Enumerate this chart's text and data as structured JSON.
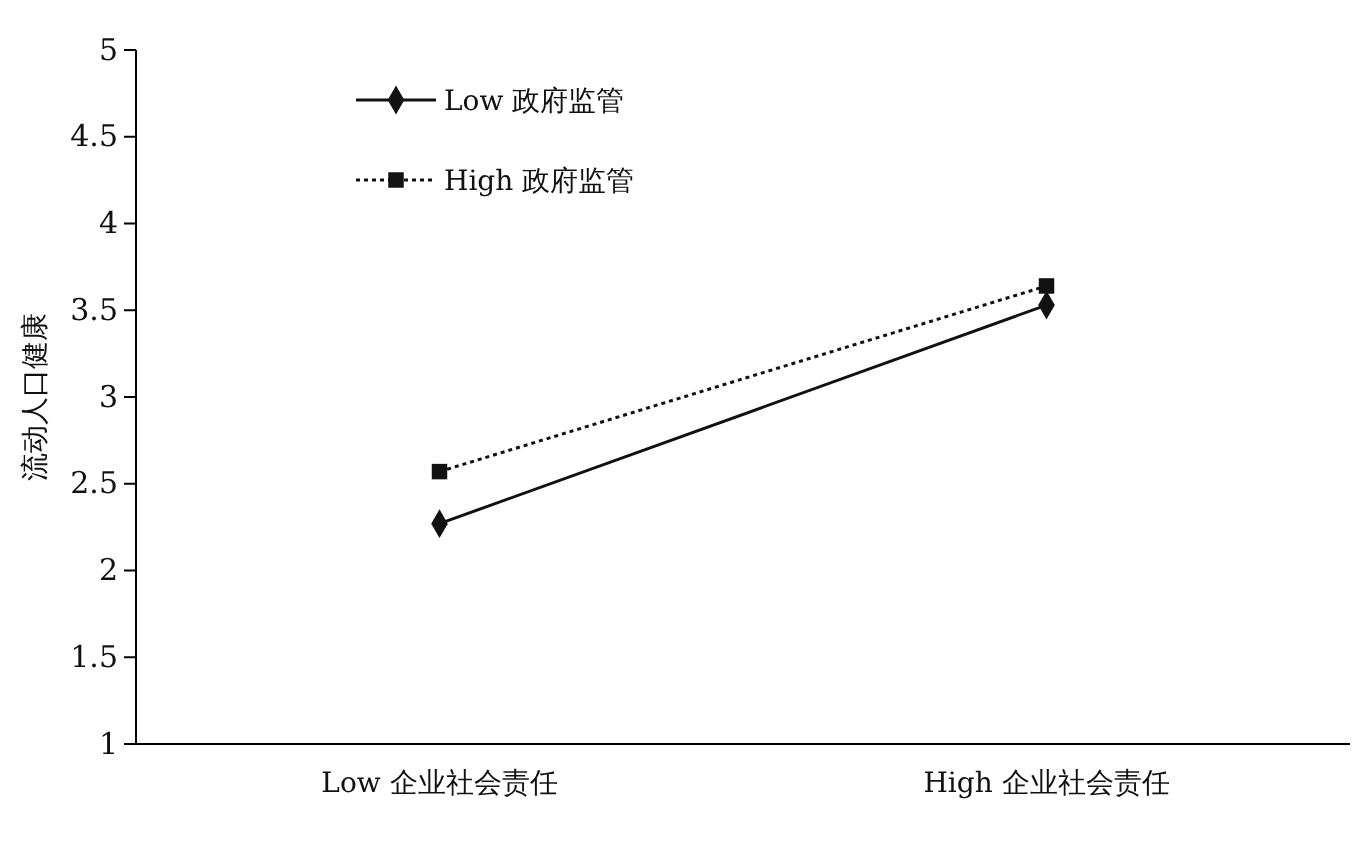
{
  "chart_data": {
    "type": "line",
    "ylabel": "流动人口健康",
    "categories": [
      "Low 企业社会责任",
      "High 企业社会责任"
    ],
    "series": [
      {
        "name": "Low 政府监管",
        "color": "#111111",
        "values": [
          2.27,
          3.53
        ],
        "marker": "diamond",
        "line_style": "solid"
      },
      {
        "name": "High 政府监管",
        "color": "#111111",
        "values": [
          2.57,
          3.64
        ],
        "marker": "square",
        "line_style": "dotted"
      }
    ],
    "ylim": [
      1,
      5
    ],
    "yticks": [
      1,
      1.5,
      2,
      2.5,
      3,
      3.5,
      4,
      4.5,
      5
    ],
    "legend": "top left",
    "grid": false
  }
}
